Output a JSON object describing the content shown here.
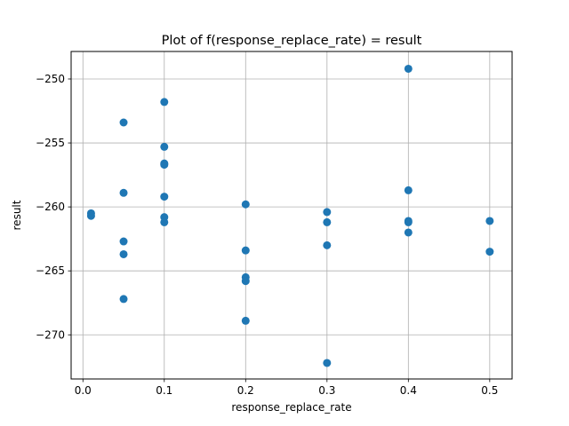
{
  "chart_data": {
    "type": "scatter",
    "title": "Plot of f(response_replace_rate) = result",
    "xlabel": "response_replace_rate",
    "ylabel": "result",
    "xlim": [
      -0.0145,
      0.5275
    ],
    "ylim": [
      -273.45,
      -247.85
    ],
    "xticks": [
      0.0,
      0.1,
      0.2,
      0.3,
      0.4,
      0.5
    ],
    "xtick_labels": [
      "0.0",
      "0.1",
      "0.2",
      "0.3",
      "0.4",
      "0.5"
    ],
    "yticks": [
      -250,
      -255,
      -260,
      -265,
      -270
    ],
    "ytick_labels": [
      "−250",
      "−255",
      "−260",
      "−265",
      "−270"
    ],
    "grid": true,
    "marker_color": "#1f77b4",
    "series": [
      {
        "points": [
          {
            "x": 0.01,
            "y": -260.5
          },
          {
            "x": 0.01,
            "y": -260.7
          },
          {
            "x": 0.05,
            "y": -253.4
          },
          {
            "x": 0.05,
            "y": -258.9
          },
          {
            "x": 0.05,
            "y": -262.7
          },
          {
            "x": 0.05,
            "y": -263.7
          },
          {
            "x": 0.05,
            "y": -267.2
          },
          {
            "x": 0.1,
            "y": -251.8
          },
          {
            "x": 0.1,
            "y": -255.3
          },
          {
            "x": 0.1,
            "y": -256.6
          },
          {
            "x": 0.1,
            "y": -256.7
          },
          {
            "x": 0.1,
            "y": -259.2
          },
          {
            "x": 0.1,
            "y": -260.8
          },
          {
            "x": 0.1,
            "y": -261.2
          },
          {
            "x": 0.2,
            "y": -259.8
          },
          {
            "x": 0.2,
            "y": -263.4
          },
          {
            "x": 0.2,
            "y": -265.5
          },
          {
            "x": 0.2,
            "y": -265.8
          },
          {
            "x": 0.2,
            "y": -268.9
          },
          {
            "x": 0.3,
            "y": -260.4
          },
          {
            "x": 0.3,
            "y": -261.2
          },
          {
            "x": 0.3,
            "y": -263.0
          },
          {
            "x": 0.3,
            "y": -272.2
          },
          {
            "x": 0.4,
            "y": -249.2
          },
          {
            "x": 0.4,
            "y": -258.7
          },
          {
            "x": 0.4,
            "y": -261.1
          },
          {
            "x": 0.4,
            "y": -262.0
          },
          {
            "x": 0.4,
            "y": -261.2
          },
          {
            "x": 0.5,
            "y": -261.1
          },
          {
            "x": 0.5,
            "y": -263.5
          }
        ]
      }
    ]
  }
}
